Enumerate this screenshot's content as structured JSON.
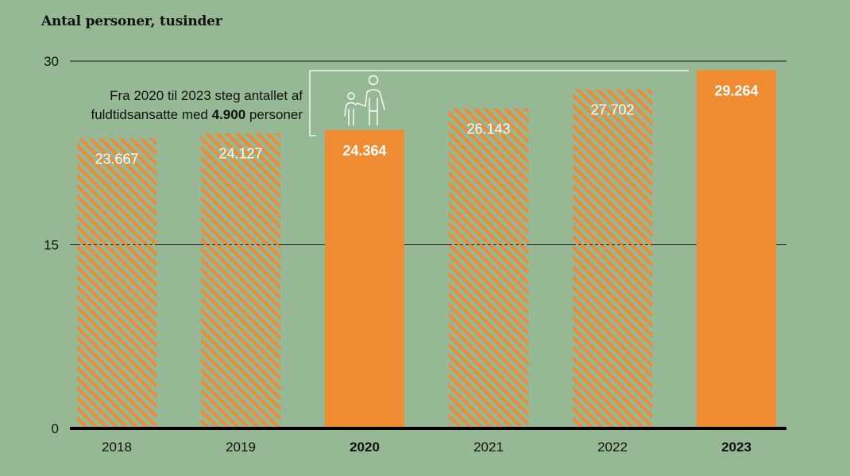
{
  "colors": {
    "background": "#97b894",
    "highlight_bar": "#ef8c32",
    "hatch_orange": "#e98d3a",
    "text_white": "#ffffff",
    "axis": "#000000"
  },
  "chart_data": {
    "type": "bar",
    "title": "Antal personer, tusinder",
    "categories": [
      "2018",
      "2019",
      "2020",
      "2021",
      "2022",
      "2023"
    ],
    "values": [
      23.667,
      24.127,
      24.364,
      26.143,
      27.702,
      29.264
    ],
    "value_labels": [
      "23.667",
      "24.127",
      "24.364",
      "26.143",
      "27.702",
      "29.264"
    ],
    "highlighted": [
      false,
      false,
      true,
      false,
      false,
      true
    ],
    "ylim": [
      0,
      30
    ],
    "yticks": [
      0,
      15,
      30
    ],
    "ytick_labels": [
      "0",
      "15",
      "30"
    ],
    "grid": true,
    "annotation": {
      "line1": "Fra 2020 til 2023 steg antallet af",
      "line2_prefix": "fuldtidsansatte med ",
      "line2_bold": "4.900",
      "line2_suffix": " personer",
      "icon": "parent-child-icon"
    }
  }
}
